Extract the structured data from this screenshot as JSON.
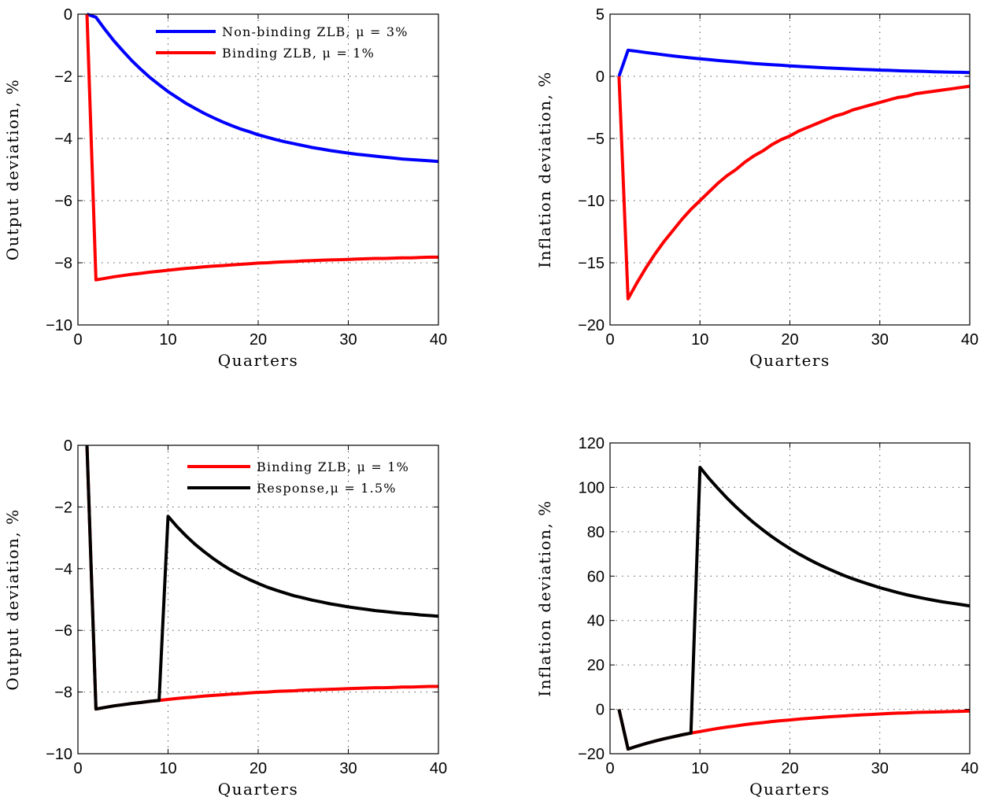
{
  "chart_data": [
    {
      "type": "line",
      "xlabel": "Quarters",
      "ylabel": "Output deviation, %",
      "xlim": [
        0,
        40
      ],
      "ylim": [
        -10,
        0
      ],
      "xticks": [
        0,
        10,
        20,
        30,
        40
      ],
      "yticks": [
        0,
        -2,
        -4,
        -6,
        -8,
        -10
      ],
      "grid": true,
      "legend_position": "top-right",
      "series": [
        {
          "name": "Non-binding ZLB, μ = 3%",
          "color": "#0000ff",
          "x": [
            1,
            2,
            3,
            4,
            5,
            6,
            7,
            8,
            9,
            10,
            11,
            12,
            13,
            14,
            15,
            16,
            17,
            18,
            19,
            20,
            21,
            22,
            23,
            24,
            25,
            26,
            27,
            28,
            29,
            30,
            31,
            32,
            33,
            34,
            35,
            36,
            37,
            38,
            39,
            40
          ],
          "y": [
            0,
            -0.1,
            -0.49,
            -0.86,
            -1.19,
            -1.5,
            -1.78,
            -2.04,
            -2.27,
            -2.49,
            -2.68,
            -2.87,
            -3.03,
            -3.19,
            -3.33,
            -3.46,
            -3.58,
            -3.69,
            -3.78,
            -3.88,
            -3.96,
            -4.04,
            -4.11,
            -4.17,
            -4.23,
            -4.29,
            -4.34,
            -4.39,
            -4.43,
            -4.47,
            -4.51,
            -4.54,
            -4.57,
            -4.6,
            -4.63,
            -4.66,
            -4.68,
            -4.7,
            -4.72,
            -4.74
          ]
        },
        {
          "name": "Binding ZLB, μ = 1%",
          "color": "#ff0000",
          "x": [
            1,
            2,
            3,
            4,
            5,
            6,
            7,
            8,
            9,
            10,
            11,
            12,
            13,
            14,
            15,
            16,
            17,
            18,
            19,
            20,
            21,
            22,
            23,
            24,
            25,
            26,
            27,
            28,
            29,
            30,
            31,
            32,
            33,
            34,
            35,
            36,
            37,
            38,
            39,
            40
          ],
          "y": [
            0,
            -8.55,
            -8.5,
            -8.45,
            -8.41,
            -8.37,
            -8.34,
            -8.3,
            -8.27,
            -8.24,
            -8.21,
            -8.18,
            -8.16,
            -8.13,
            -8.11,
            -8.09,
            -8.07,
            -8.05,
            -8.03,
            -8.01,
            -8,
            -7.98,
            -7.97,
            -7.96,
            -7.94,
            -7.93,
            -7.92,
            -7.91,
            -7.9,
            -7.89,
            -7.88,
            -7.87,
            -7.86,
            -7.86,
            -7.85,
            -7.84,
            -7.84,
            -7.83,
            -7.82,
            -7.82
          ]
        }
      ]
    },
    {
      "type": "line",
      "xlabel": "Quarters",
      "ylabel": "Inflation deviation, %",
      "xlim": [
        0,
        40
      ],
      "ylim": [
        -20,
        5
      ],
      "xticks": [
        0,
        10,
        20,
        30,
        40
      ],
      "yticks": [
        5,
        0,
        -5,
        -10,
        -15,
        -20
      ],
      "grid": true,
      "series": [
        {
          "name": "Non-binding ZLB, μ = 3%",
          "color": "#0000ff",
          "x": [
            1,
            2,
            3,
            4,
            5,
            6,
            7,
            8,
            9,
            10,
            11,
            12,
            13,
            14,
            15,
            16,
            17,
            18,
            19,
            20,
            21,
            22,
            23,
            24,
            25,
            26,
            27,
            28,
            29,
            30,
            31,
            32,
            33,
            34,
            35,
            36,
            37,
            38,
            39,
            40
          ],
          "y": [
            0,
            2.1,
            2.01,
            1.91,
            1.82,
            1.73,
            1.64,
            1.56,
            1.48,
            1.41,
            1.34,
            1.27,
            1.21,
            1.15,
            1.09,
            1.03,
            0.98,
            0.93,
            0.89,
            0.84,
            0.8,
            0.76,
            0.72,
            0.68,
            0.65,
            0.62,
            0.59,
            0.56,
            0.53,
            0.5,
            0.48,
            0.45,
            0.43,
            0.41,
            0.39,
            0.37,
            0.35,
            0.33,
            0.32,
            0.3
          ]
        },
        {
          "name": "Binding ZLB, μ = 1%",
          "color": "#ff0000",
          "x": [
            1,
            2,
            3,
            4,
            5,
            6,
            7,
            8,
            9,
            10,
            11,
            12,
            13,
            14,
            15,
            16,
            17,
            18,
            19,
            20,
            21,
            22,
            23,
            24,
            25,
            26,
            27,
            28,
            29,
            30,
            31,
            32,
            33,
            34,
            35,
            36,
            37,
            38,
            39,
            40
          ],
          "y": [
            0,
            -17.9,
            -16.6,
            -15.4,
            -14.3,
            -13.3,
            -12.4,
            -11.5,
            -10.7,
            -10,
            -9.3,
            -8.6,
            -8,
            -7.5,
            -6.9,
            -6.4,
            -6,
            -5.5,
            -5.1,
            -4.8,
            -4.4,
            -4.1,
            -3.8,
            -3.5,
            -3.2,
            -3,
            -2.7,
            -2.5,
            -2.3,
            -2.1,
            -1.9,
            -1.7,
            -1.6,
            -1.4,
            -1.3,
            -1.2,
            -1.1,
            -1,
            -0.9,
            -0.8
          ]
        }
      ]
    },
    {
      "type": "line",
      "xlabel": "Quarters",
      "ylabel": "Output deviation, %",
      "xlim": [
        0,
        40
      ],
      "ylim": [
        -10,
        0
      ],
      "xticks": [
        0,
        10,
        20,
        30,
        40
      ],
      "yticks": [
        0,
        -2,
        -4,
        -6,
        -8,
        -10
      ],
      "grid": true,
      "legend_position": "top-right",
      "series": [
        {
          "name": "Binding ZLB, μ = 1%",
          "color": "#ff0000",
          "x": [
            1,
            2,
            3,
            4,
            5,
            6,
            7,
            8,
            9,
            10,
            11,
            12,
            13,
            14,
            15,
            16,
            17,
            18,
            19,
            20,
            21,
            22,
            23,
            24,
            25,
            26,
            27,
            28,
            29,
            30,
            31,
            32,
            33,
            34,
            35,
            36,
            37,
            38,
            39,
            40
          ],
          "y": [
            0,
            -8.55,
            -8.5,
            -8.45,
            -8.41,
            -8.37,
            -8.34,
            -8.3,
            -8.27,
            -8.24,
            -8.21,
            -8.18,
            -8.16,
            -8.13,
            -8.11,
            -8.09,
            -8.07,
            -8.05,
            -8.03,
            -8.01,
            -8,
            -7.98,
            -7.97,
            -7.96,
            -7.94,
            -7.93,
            -7.92,
            -7.91,
            -7.9,
            -7.89,
            -7.88,
            -7.87,
            -7.86,
            -7.86,
            -7.85,
            -7.84,
            -7.84,
            -7.83,
            -7.82,
            -7.82
          ]
        },
        {
          "name": "Response,μ = 1.5%",
          "color": "#000000",
          "x": [
            1,
            2,
            3,
            4,
            5,
            6,
            7,
            8,
            9,
            10,
            11,
            12,
            13,
            14,
            15,
            16,
            17,
            18,
            19,
            20,
            21,
            22,
            23,
            24,
            25,
            26,
            27,
            28,
            29,
            30,
            31,
            32,
            33,
            34,
            35,
            36,
            37,
            38,
            39,
            40
          ],
          "y": [
            0,
            -8.55,
            -8.5,
            -8.45,
            -8.41,
            -8.37,
            -8.34,
            -8.3,
            -8.27,
            -2.3,
            -2.64,
            -2.94,
            -3.21,
            -3.45,
            -3.67,
            -3.87,
            -4.05,
            -4.21,
            -4.35,
            -4.48,
            -4.6,
            -4.7,
            -4.79,
            -4.88,
            -4.95,
            -5.02,
            -5.08,
            -5.14,
            -5.19,
            -5.24,
            -5.28,
            -5.32,
            -5.36,
            -5.39,
            -5.42,
            -5.45,
            -5.47,
            -5.5,
            -5.52,
            -5.54
          ]
        }
      ]
    },
    {
      "type": "line",
      "xlabel": "Quarters",
      "ylabel": "Inflation deviation, %",
      "xlim": [
        0,
        40
      ],
      "ylim": [
        -20,
        120
      ],
      "xticks": [
        0,
        10,
        20,
        30,
        40
      ],
      "yticks": [
        120,
        100,
        80,
        60,
        40,
        20,
        0,
        -20
      ],
      "grid": true,
      "series": [
        {
          "name": "Binding ZLB, μ = 1%",
          "color": "#ff0000",
          "x": [
            1,
            2,
            3,
            4,
            5,
            6,
            7,
            8,
            9,
            10,
            11,
            12,
            13,
            14,
            15,
            16,
            17,
            18,
            19,
            20,
            21,
            22,
            23,
            24,
            25,
            26,
            27,
            28,
            29,
            30,
            31,
            32,
            33,
            34,
            35,
            36,
            37,
            38,
            39,
            40
          ],
          "y": [
            0,
            -17.9,
            -16.6,
            -15.4,
            -14.3,
            -13.3,
            -12.4,
            -11.5,
            -10.7,
            -10,
            -9.3,
            -8.6,
            -8,
            -7.5,
            -6.9,
            -6.4,
            -6,
            -5.5,
            -5.1,
            -4.8,
            -4.4,
            -4.1,
            -3.8,
            -3.5,
            -3.2,
            -3,
            -2.7,
            -2.5,
            -2.3,
            -2.1,
            -1.9,
            -1.7,
            -1.6,
            -1.4,
            -1.3,
            -1.2,
            -1.1,
            -1,
            -0.9,
            -0.8
          ]
        },
        {
          "name": "Response,μ = 1.5%",
          "color": "#000000",
          "x": [
            1,
            2,
            3,
            4,
            5,
            6,
            7,
            8,
            9,
            10,
            11,
            12,
            13,
            14,
            15,
            16,
            17,
            18,
            19,
            20,
            21,
            22,
            23,
            24,
            25,
            26,
            27,
            28,
            29,
            30,
            31,
            32,
            33,
            34,
            35,
            36,
            37,
            38,
            39,
            40
          ],
          "y": [
            0,
            -17.9,
            -16.6,
            -15.4,
            -14.3,
            -13.3,
            -12.4,
            -11.5,
            -10.7,
            109,
            104,
            99.5,
            95.2,
            91.2,
            87.5,
            84,
            80.8,
            77.8,
            75,
            72.4,
            70,
            67.8,
            65.7,
            63.8,
            62,
            60.3,
            58.8,
            57.4,
            56.1,
            54.8,
            53.7,
            52.6,
            51.6,
            50.7,
            49.9,
            49.1,
            48.4,
            47.8,
            47.2,
            46.6
          ]
        }
      ]
    }
  ]
}
